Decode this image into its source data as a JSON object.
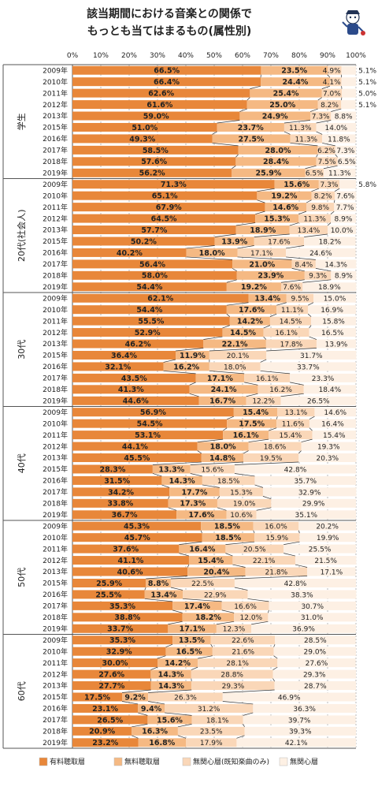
{
  "chart_data": {
    "type": "bar",
    "stacked": true,
    "orientation": "horizontal",
    "title": [
      "該当期間における音楽との関係で",
      "もっとも当てはまるもの(属性別)"
    ],
    "xlim": [
      0,
      100
    ],
    "x_ticks": [
      "0%",
      "10%",
      "20%",
      "30%",
      "40%",
      "50%",
      "60%",
      "70%",
      "80%",
      "90%",
      "100%"
    ],
    "series": [
      {
        "name": "有料聴取層",
        "color": "#e8873a"
      },
      {
        "name": "無料聴取層",
        "color": "#f5b983"
      },
      {
        "name": "無関心層(既知楽曲のみ)",
        "color": "#fad7b8"
      },
      {
        "name": "無関心層",
        "color": "#fdf0e4"
      }
    ],
    "groups": [
      {
        "name": "学生",
        "rows": [
          {
            "year": "2009年",
            "values": [
              66.5,
              23.5,
              4.9,
              5.1
            ]
          },
          {
            "year": "2010年",
            "values": [
              66.4,
              24.4,
              4.1,
              5.1
            ]
          },
          {
            "year": "2011年",
            "values": [
              62.6,
              25.4,
              7.0,
              5.0
            ]
          },
          {
            "year": "2012年",
            "values": [
              61.6,
              25.0,
              8.2,
              5.1
            ]
          },
          {
            "year": "2013年",
            "values": [
              59.0,
              24.9,
              7.3,
              8.8
            ]
          },
          {
            "year": "2015年",
            "values": [
              51.0,
              23.7,
              11.3,
              14.0
            ]
          },
          {
            "year": "2016年",
            "values": [
              49.3,
              27.5,
              11.3,
              11.8
            ]
          },
          {
            "year": "2017年",
            "values": [
              58.5,
              28.0,
              6.2,
              7.3
            ]
          },
          {
            "year": "2018年",
            "values": [
              57.6,
              28.4,
              7.5,
              6.5
            ]
          },
          {
            "year": "2019年",
            "values": [
              56.2,
              25.9,
              6.5,
              11.3
            ]
          }
        ]
      },
      {
        "name": "20代(社会人)",
        "rows": [
          {
            "year": "2009年",
            "values": [
              71.3,
              15.6,
              7.3,
              5.8
            ]
          },
          {
            "year": "2010年",
            "values": [
              65.1,
              19.2,
              8.2,
              7.6
            ]
          },
          {
            "year": "2011年",
            "values": [
              67.9,
              14.6,
              9.8,
              7.7
            ]
          },
          {
            "year": "2012年",
            "values": [
              64.5,
              15.3,
              11.3,
              8.9
            ]
          },
          {
            "year": "2013年",
            "values": [
              57.7,
              18.9,
              13.4,
              10.0
            ]
          },
          {
            "year": "2015年",
            "values": [
              50.2,
              13.9,
              17.6,
              18.2
            ]
          },
          {
            "year": "2016年",
            "values": [
              40.2,
              18.0,
              17.1,
              24.6
            ]
          },
          {
            "year": "2017年",
            "values": [
              56.4,
              21.0,
              8.4,
              14.3
            ]
          },
          {
            "year": "2018年",
            "values": [
              58.0,
              23.9,
              9.3,
              8.9
            ]
          },
          {
            "year": "2019年",
            "values": [
              54.4,
              19.2,
              7.6,
              18.9
            ]
          }
        ]
      },
      {
        "name": "30代",
        "rows": [
          {
            "year": "2009年",
            "values": [
              62.1,
              13.4,
              9.5,
              15.0
            ]
          },
          {
            "year": "2010年",
            "values": [
              54.4,
              17.6,
              11.1,
              16.9
            ]
          },
          {
            "year": "2011年",
            "values": [
              55.5,
              14.2,
              14.5,
              15.8
            ]
          },
          {
            "year": "2012年",
            "values": [
              52.9,
              14.5,
              16.1,
              16.5
            ]
          },
          {
            "year": "2013年",
            "values": [
              46.2,
              22.1,
              17.8,
              13.9
            ]
          },
          {
            "year": "2015年",
            "values": [
              36.4,
              11.9,
              20.1,
              31.7
            ]
          },
          {
            "year": "2016年",
            "values": [
              32.1,
              16.2,
              18.0,
              33.7
            ]
          },
          {
            "year": "2017年",
            "values": [
              43.5,
              17.1,
              16.1,
              23.3
            ]
          },
          {
            "year": "2018年",
            "values": [
              41.3,
              24.1,
              16.2,
              18.4
            ]
          },
          {
            "year": "2019年",
            "values": [
              44.6,
              16.7,
              12.2,
              26.5
            ]
          }
        ]
      },
      {
        "name": "40代",
        "rows": [
          {
            "year": "2009年",
            "values": [
              56.9,
              15.4,
              13.1,
              14.6
            ]
          },
          {
            "year": "2010年",
            "values": [
              54.5,
              17.5,
              11.6,
              16.4
            ]
          },
          {
            "year": "2011年",
            "values": [
              53.1,
              16.1,
              15.4,
              15.4
            ]
          },
          {
            "year": "2012年",
            "values": [
              44.1,
              18.0,
              18.6,
              19.3
            ]
          },
          {
            "year": "2013年",
            "values": [
              45.5,
              14.8,
              19.5,
              20.3
            ]
          },
          {
            "year": "2015年",
            "values": [
              28.3,
              13.3,
              15.6,
              42.8
            ]
          },
          {
            "year": "2016年",
            "values": [
              31.5,
              14.3,
              18.5,
              35.7
            ]
          },
          {
            "year": "2017年",
            "values": [
              34.2,
              17.7,
              15.3,
              32.9
            ]
          },
          {
            "year": "2018年",
            "values": [
              33.8,
              17.3,
              19.0,
              29.9
            ]
          },
          {
            "year": "2019年",
            "values": [
              36.7,
              17.6,
              10.6,
              35.1
            ]
          }
        ]
      },
      {
        "name": "50代",
        "rows": [
          {
            "year": "2009年",
            "values": [
              45.3,
              18.5,
              16.0,
              20.2
            ]
          },
          {
            "year": "2010年",
            "values": [
              45.7,
              18.5,
              15.9,
              19.9
            ]
          },
          {
            "year": "2011年",
            "values": [
              37.6,
              16.4,
              20.5,
              25.5
            ]
          },
          {
            "year": "2012年",
            "values": [
              41.1,
              15.4,
              22.1,
              21.5
            ]
          },
          {
            "year": "2013年",
            "values": [
              40.6,
              20.4,
              21.8,
              17.1
            ]
          },
          {
            "year": "2015年",
            "values": [
              25.9,
              8.8,
              22.5,
              42.8
            ]
          },
          {
            "year": "2016年",
            "values": [
              25.5,
              13.4,
              22.9,
              38.3
            ]
          },
          {
            "year": "2017年",
            "values": [
              35.3,
              17.4,
              16.6,
              30.7
            ]
          },
          {
            "year": "2018年",
            "values": [
              38.8,
              18.2,
              12.0,
              31.0
            ]
          },
          {
            "year": "2019年",
            "values": [
              33.7,
              17.1,
              12.3,
              36.9
            ]
          }
        ]
      },
      {
        "name": "60代",
        "rows": [
          {
            "year": "2009年",
            "values": [
              35.3,
              13.5,
              22.6,
              28.5
            ]
          },
          {
            "year": "2010年",
            "values": [
              32.9,
              16.5,
              21.6,
              29.0
            ]
          },
          {
            "year": "2011年",
            "values": [
              30.0,
              14.2,
              28.1,
              27.6
            ]
          },
          {
            "year": "2012年",
            "values": [
              27.6,
              14.3,
              28.8,
              29.3
            ]
          },
          {
            "year": "2013年",
            "values": [
              27.7,
              14.3,
              29.3,
              28.7
            ]
          },
          {
            "year": "2015年",
            "values": [
              17.5,
              9.2,
              26.3,
              46.9
            ]
          },
          {
            "year": "2016年",
            "values": [
              23.1,
              9.4,
              31.2,
              36.3
            ]
          },
          {
            "year": "2017年",
            "values": [
              26.5,
              15.6,
              18.1,
              39.7
            ]
          },
          {
            "year": "2018年",
            "values": [
              20.9,
              16.3,
              23.5,
              39.3
            ]
          },
          {
            "year": "2019年",
            "values": [
              23.2,
              16.8,
              17.9,
              42.1
            ]
          }
        ]
      }
    ],
    "legend_position": "bottom",
    "grid": true
  }
}
